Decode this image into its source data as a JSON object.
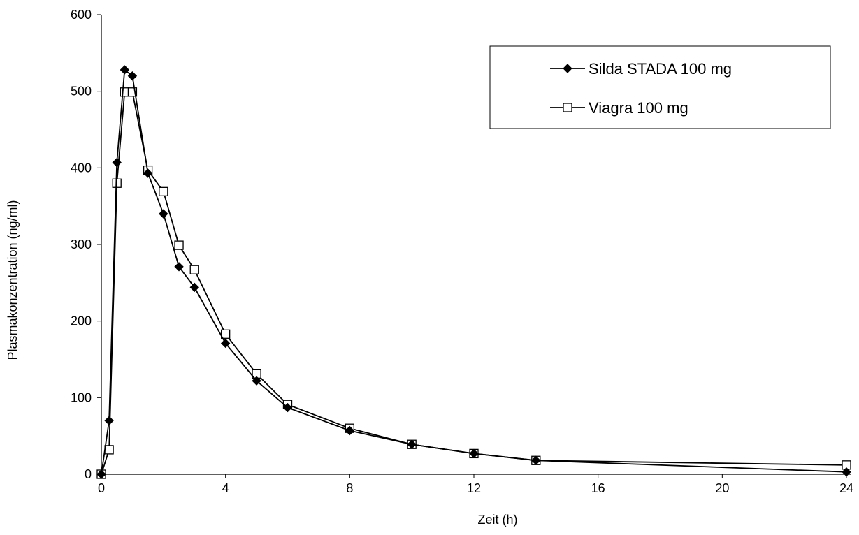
{
  "chart_data": {
    "type": "line",
    "title": "",
    "xlabel": "Zeit (h)",
    "ylabel": "Plasmakonzentration (ng/ml)",
    "xlim": [
      0,
      24
    ],
    "ylim": [
      0,
      600
    ],
    "xticks": [
      0,
      4,
      8,
      12,
      16,
      20,
      24
    ],
    "yticks": [
      0,
      100,
      200,
      300,
      400,
      500,
      600
    ],
    "grid": false,
    "legend_position": "top-right",
    "series": [
      {
        "name": "Silda STADA 100 mg",
        "marker": "filled-diamond",
        "color": "#000000",
        "points": [
          {
            "x": 0,
            "y": 0
          },
          {
            "x": 0.25,
            "y": 70
          },
          {
            "x": 0.5,
            "y": 407
          },
          {
            "x": 0.75,
            "y": 528
          },
          {
            "x": 1,
            "y": 520
          },
          {
            "x": 1.5,
            "y": 393
          },
          {
            "x": 2,
            "y": 340
          },
          {
            "x": 2.5,
            "y": 271
          },
          {
            "x": 3,
            "y": 244
          },
          {
            "x": 4,
            "y": 171
          },
          {
            "x": 5,
            "y": 122
          },
          {
            "x": 6,
            "y": 87
          },
          {
            "x": 8,
            "y": 57
          },
          {
            "x": 10,
            "y": 39
          },
          {
            "x": 12,
            "y": 27
          },
          {
            "x": 14,
            "y": 18
          },
          {
            "x": 24,
            "y": 3
          }
        ]
      },
      {
        "name": "Viagra 100 mg",
        "marker": "open-square",
        "color": "#000000",
        "points": [
          {
            "x": 0,
            "y": 0
          },
          {
            "x": 0.25,
            "y": 32
          },
          {
            "x": 0.5,
            "y": 380
          },
          {
            "x": 0.75,
            "y": 499
          },
          {
            "x": 1,
            "y": 499
          },
          {
            "x": 1.5,
            "y": 397
          },
          {
            "x": 2,
            "y": 369
          },
          {
            "x": 2.5,
            "y": 299
          },
          {
            "x": 3,
            "y": 267
          },
          {
            "x": 4,
            "y": 183
          },
          {
            "x": 5,
            "y": 131
          },
          {
            "x": 6,
            "y": 91
          },
          {
            "x": 8,
            "y": 60
          },
          {
            "x": 10,
            "y": 39
          },
          {
            "x": 12,
            "y": 27
          },
          {
            "x": 14,
            "y": 18
          },
          {
            "x": 24,
            "y": 12
          }
        ]
      }
    ]
  }
}
